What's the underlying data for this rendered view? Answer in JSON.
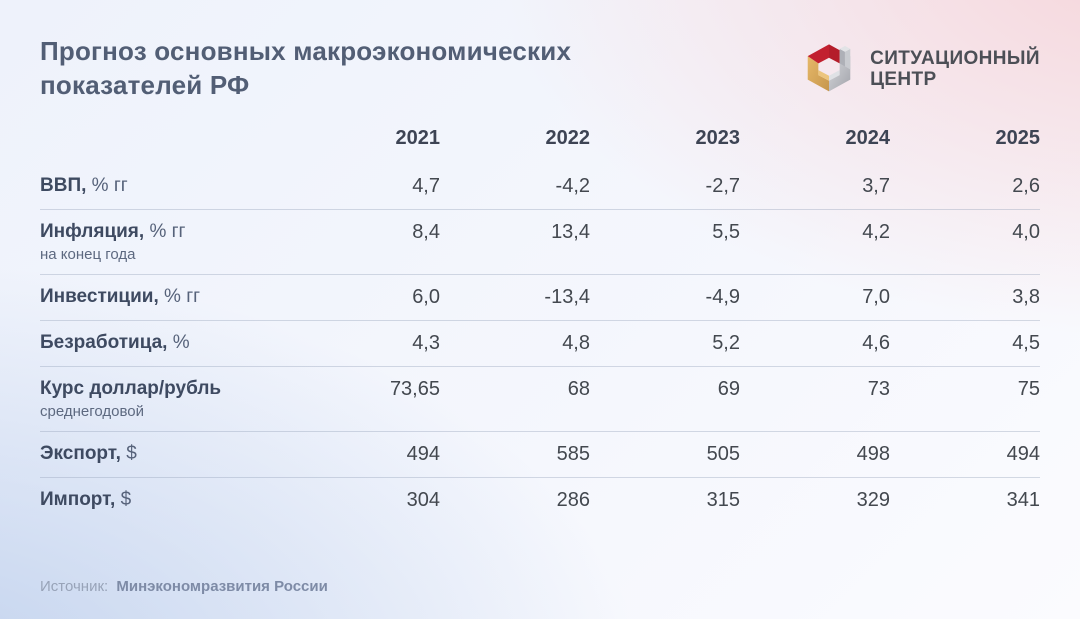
{
  "page": {
    "title": "Прогноз основных макроэкономических показателей РФ"
  },
  "logo": {
    "line1": "СИТУАЦИОННЫЙ",
    "line2": "ЦЕНТР",
    "colors": {
      "red": "#c2202f",
      "red_dark": "#a31a28",
      "gold": "#dfae5f",
      "gold_dark": "#c6964c",
      "gold_light": "#ecc57e",
      "silver": "#b4b6bd",
      "silver_light": "#d6d7db"
    }
  },
  "table": {
    "years": [
      "2021",
      "2022",
      "2023",
      "2024",
      "2025"
    ],
    "rows": [
      {
        "label": "ВВП,",
        "unit": "% гг",
        "sub": "",
        "values": [
          "4,7",
          "-4,2",
          "-2,7",
          "3,7",
          "2,6"
        ]
      },
      {
        "label": "Инфляция,",
        "unit": "% гг",
        "sub": "на конец года",
        "values": [
          "8,4",
          "13,4",
          "5,5",
          "4,2",
          "4,0"
        ]
      },
      {
        "label": "Инвестиции,",
        "unit": "% гг",
        "sub": "",
        "values": [
          "6,0",
          "-13,4",
          "-4,9",
          "7,0",
          "3,8"
        ]
      },
      {
        "label": "Безработица,",
        "unit": "%",
        "sub": "",
        "values": [
          "4,3",
          "4,8",
          "5,2",
          "4,6",
          "4,5"
        ]
      },
      {
        "label": "Курс доллар/рубль",
        "unit": "",
        "sub": "среднегодовой",
        "values": [
          "73,65",
          "68",
          "69",
          "73",
          "75"
        ]
      },
      {
        "label": "Экспорт,",
        "unit": "$",
        "sub": "",
        "values": [
          "494",
          "585",
          "505",
          "498",
          "494"
        ]
      },
      {
        "label": "Импорт,",
        "unit": "$",
        "sub": "",
        "values": [
          "304",
          "286",
          "315",
          "329",
          "341"
        ]
      }
    ]
  },
  "footer": {
    "source_label": "Источник:",
    "source_value": "Минэкономразвития России"
  },
  "chart_data": {
    "type": "table",
    "title": "Прогноз основных макроэкономических показателей РФ",
    "categories": [
      2021,
      2022,
      2023,
      2024,
      2025
    ],
    "series": [
      {
        "name": "ВВП, % гг",
        "values": [
          4.7,
          -4.2,
          -2.7,
          3.7,
          2.6
        ]
      },
      {
        "name": "Инфляция, % гг (на конец года)",
        "values": [
          8.4,
          13.4,
          5.5,
          4.2,
          4.0
        ]
      },
      {
        "name": "Инвестиции, % гг",
        "values": [
          6.0,
          -13.4,
          -4.9,
          7.0,
          3.8
        ]
      },
      {
        "name": "Безработица, %",
        "values": [
          4.3,
          4.8,
          5.2,
          4.6,
          4.5
        ]
      },
      {
        "name": "Курс доллар/рубль (среднегодовой)",
        "values": [
          73.65,
          68,
          69,
          73,
          75
        ]
      },
      {
        "name": "Экспорт, $",
        "values": [
          494,
          585,
          505,
          498,
          494
        ]
      },
      {
        "name": "Импорт, $",
        "values": [
          304,
          286,
          315,
          329,
          341
        ]
      }
    ],
    "source": "Минэкономразвития России"
  }
}
